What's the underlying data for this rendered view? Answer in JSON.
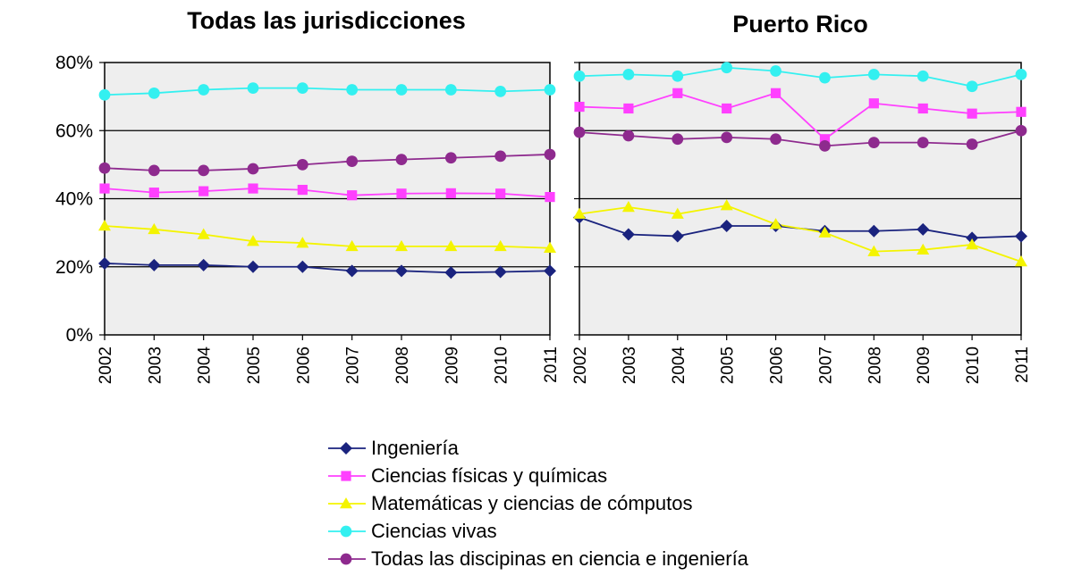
{
  "chart_data": [
    {
      "type": "line",
      "title": "Todas las jurisdicciones",
      "categories": [
        "2002",
        "2003",
        "2004",
        "2005",
        "2006",
        "2007",
        "2008",
        "2009",
        "2010",
        "2011"
      ],
      "ylim": [
        0,
        80
      ],
      "yticks": [
        "0%",
        "20%",
        "40%",
        "60%",
        "80%"
      ],
      "grid": true,
      "series": [
        {
          "name": "Ingeniería",
          "marker": "diamond",
          "color": "#1a237e",
          "values": [
            21,
            20.5,
            20.5,
            20,
            20,
            18.8,
            18.8,
            18.3,
            18.5,
            18.8
          ]
        },
        {
          "name": "Ciencias físicas y químicas",
          "marker": "square",
          "color": "#ff40ff",
          "values": [
            43,
            41.8,
            42.2,
            43,
            42.6,
            41,
            41.5,
            41.6,
            41.5,
            40.5
          ]
        },
        {
          "name": "Matemáticas y ciencias de cómputos",
          "marker": "triangle",
          "color": "#f4f400",
          "values": [
            32,
            31,
            29.5,
            27.5,
            27,
            26,
            26,
            26,
            26,
            25.5
          ]
        },
        {
          "name": "Ciencias vivas",
          "marker": "circle",
          "color": "#33f0f0",
          "values": [
            70.5,
            71,
            72,
            72.5,
            72.5,
            72,
            72,
            72,
            71.5,
            72
          ]
        },
        {
          "name": "Todas las discipinas en ciencia e ingeniería",
          "marker": "circle",
          "color": "#8e2a8e",
          "values": [
            49,
            48.3,
            48.3,
            48.8,
            50,
            51,
            51.5,
            52,
            52.5,
            53
          ]
        }
      ]
    },
    {
      "type": "line",
      "title": "Puerto Rico",
      "categories": [
        "2002",
        "2003",
        "2004",
        "2005",
        "2006",
        "2007",
        "2008",
        "2009",
        "2010",
        "2011"
      ],
      "ylim": [
        0,
        80
      ],
      "grid": true,
      "series": [
        {
          "name": "Ingeniería",
          "marker": "diamond",
          "color": "#1a237e",
          "values": [
            34.5,
            29.5,
            29,
            32,
            32,
            30.5,
            30.5,
            31,
            28.5,
            29
          ]
        },
        {
          "name": "Ciencias físicas y químicas",
          "marker": "square",
          "color": "#ff40ff",
          "values": [
            67,
            66.5,
            71,
            66.5,
            71,
            57.5,
            68,
            66.5,
            65,
            65.5
          ]
        },
        {
          "name": "Matemáticas y ciencias de cómputos",
          "marker": "triangle",
          "color": "#f4f400",
          "values": [
            35.5,
            37.5,
            35.5,
            38,
            32.5,
            30,
            24.5,
            25,
            26.5,
            21.5
          ]
        },
        {
          "name": "Ciencias vivas",
          "marker": "circle",
          "color": "#33f0f0",
          "values": [
            76,
            76.5,
            76,
            78.5,
            77.5,
            75.5,
            76.5,
            76,
            73,
            76.5
          ]
        },
        {
          "name": "Todas las discipinas en ciencia e ingeniería",
          "marker": "circle",
          "color": "#8e2a8e",
          "values": [
            59.5,
            58.5,
            57.5,
            58,
            57.5,
            55.5,
            56.5,
            56.5,
            56,
            60
          ]
        }
      ]
    }
  ],
  "legend": [
    {
      "label": "Ingeniería",
      "marker": "diamond",
      "color": "#1a237e"
    },
    {
      "label": "Ciencias físicas y químicas",
      "marker": "square",
      "color": "#ff40ff"
    },
    {
      "label": "Matemáticas y ciencias de cómputos",
      "marker": "triangle",
      "color": "#f4f400"
    },
    {
      "label": "Ciencias vivas",
      "marker": "circle",
      "color": "#33f0f0"
    },
    {
      "label": "Todas las discipinas en ciencia e ingeniería",
      "marker": "circle",
      "color": "#8e2a8e"
    }
  ],
  "colors": {
    "plot_background": "#eeeeee",
    "gridline": "#000000"
  }
}
